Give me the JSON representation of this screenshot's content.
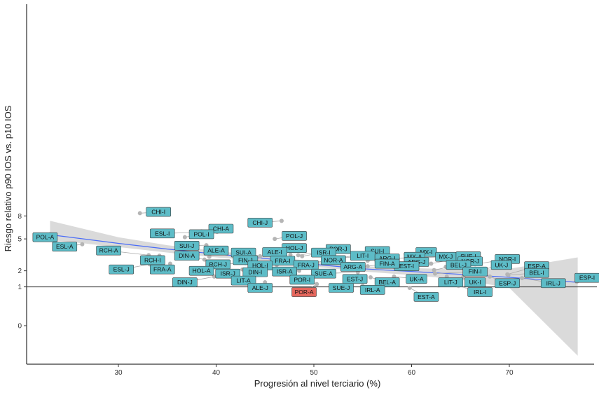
{
  "chart_data": {
    "type": "scatter",
    "xlabel": "Progresión al nivel terciario (%)",
    "ylabel": "Riesgo relativo p90 IOS vs. p10 IOS",
    "xlim": [
      21,
      79
    ],
    "ylim": [
      -1.0,
      9.0
    ],
    "x_ticks": [
      30,
      40,
      50,
      60,
      70
    ],
    "y_ticks": [
      0,
      1,
      2,
      5,
      8
    ],
    "reference_line_y": 1,
    "grid": false,
    "fit": {
      "method": "loess smooth with confidence band",
      "color": "#4a6cf7",
      "band_color": "#d3d3d3",
      "x": [
        23,
        30,
        35,
        40,
        45,
        50,
        55,
        60,
        65,
        70,
        77
      ],
      "y": [
        5.5,
        4.5,
        3.9,
        3.4,
        3.0,
        2.5,
        2.15,
        1.95,
        1.75,
        1.55,
        1.25
      ],
      "lower": [
        4.9,
        4.1,
        3.55,
        3.1,
        2.75,
        2.3,
        1.95,
        1.7,
        1.4,
        0.95,
        -0.6
      ],
      "upper": [
        7.3,
        5.2,
        4.3,
        3.7,
        3.2,
        2.75,
        2.35,
        2.2,
        2.1,
        2.15,
        3.1
      ]
    },
    "points": [
      {
        "label": "CHI-I",
        "x": 32.2,
        "y": 8.4,
        "lx": 34.1,
        "ly": 8.6
      },
      {
        "label": "CHI-J",
        "x": 46.7,
        "y": 7.3,
        "lx": 44.5,
        "ly": 7.05
      },
      {
        "label": "CHI-A",
        "x": 38.5,
        "y": 5.9,
        "lx": 40.5,
        "ly": 6.25
      },
      {
        "label": "ESL-I",
        "x": 40.1,
        "y": 5.85,
        "lx": 34.5,
        "ly": 5.65
      },
      {
        "label": "POL-I",
        "x": 36.8,
        "y": 5.2,
        "lx": 38.5,
        "ly": 5.55
      },
      {
        "label": "POL-J",
        "x": 46.0,
        "y": 5.0,
        "lx": 48.0,
        "ly": 5.35
      },
      {
        "label": "POL-A",
        "x": 23.0,
        "y": 5.55,
        "lx": 22.5,
        "ly": 5.2
      },
      {
        "label": "ESL-A",
        "x": 26.3,
        "y": 4.4,
        "lx": 24.5,
        "ly": 4.15
      },
      {
        "label": "SUI-J",
        "x": 39.0,
        "y": 4.3,
        "lx": 37.0,
        "ly": 4.25
      },
      {
        "label": "HOL-J",
        "x": 47.6,
        "y": 3.35,
        "lx": 48.0,
        "ly": 4.0
      },
      {
        "label": "POR-J",
        "x": 48.4,
        "y": 3.3,
        "lx": 52.5,
        "ly": 3.9
      },
      {
        "label": "RCH-A",
        "x": 33.1,
        "y": 3.3,
        "lx": 29.0,
        "ly": 3.75
      },
      {
        "label": "ALE-A",
        "x": 39.3,
        "y": 3.15,
        "lx": 40.0,
        "ly": 3.75
      },
      {
        "label": "SUI-A",
        "x": 44.5,
        "y": 3.2,
        "lx": 42.8,
        "ly": 3.55
      },
      {
        "label": "ALE-I",
        "x": 46.0,
        "y": 3.2,
        "lx": 46.0,
        "ly": 3.6
      },
      {
        "label": "ISR-I",
        "x": 48.8,
        "y": 3.2,
        "lx": 51.0,
        "ly": 3.55
      },
      {
        "label": "SUI-I",
        "x": 52.5,
        "y": 3.0,
        "lx": 56.5,
        "ly": 3.7
      },
      {
        "label": "MX-I",
        "x": 59.4,
        "y": 3.4,
        "lx": 61.5,
        "ly": 3.6
      },
      {
        "label": "LIT-I",
        "x": 51.5,
        "y": 2.9,
        "lx": 55.0,
        "ly": 3.25
      },
      {
        "label": "DIN-A",
        "x": 38.8,
        "y": 2.9,
        "lx": 37.0,
        "ly": 3.25
      },
      {
        "label": "MX-A",
        "x": 58.6,
        "y": 3.0,
        "lx": 60.3,
        "ly": 3.15
      },
      {
        "label": "MX-J",
        "x": 60.2,
        "y": 3.05,
        "lx": 63.5,
        "ly": 3.15
      },
      {
        "label": "SUE-I",
        "x": 62.0,
        "y": 2.55,
        "lx": 65.8,
        "ly": 3.2
      },
      {
        "label": "ARG-I",
        "x": 55.5,
        "y": 2.8,
        "lx": 57.5,
        "ly": 3.0
      },
      {
        "label": "NOR-I",
        "x": 66.5,
        "y": 2.5,
        "lx": 69.8,
        "ly": 2.95
      },
      {
        "label": "NOR-A",
        "x": 49.9,
        "y": 2.65,
        "lx": 52.0,
        "ly": 2.85
      },
      {
        "label": "RCH-I",
        "x": 34.2,
        "y": 3.25,
        "lx": 33.5,
        "ly": 2.85
      },
      {
        "label": "FIN-J",
        "x": 42.5,
        "y": 2.95,
        "lx": 43.0,
        "ly": 2.85
      },
      {
        "label": "FRA-I",
        "x": 46.5,
        "y": 2.9,
        "lx": 46.8,
        "ly": 2.8
      },
      {
        "label": "NOR-J",
        "x": 63.5,
        "y": 2.3,
        "lx": 66.0,
        "ly": 2.75
      },
      {
        "label": "ARG-J",
        "x": 57.5,
        "y": 2.55,
        "lx": 60.5,
        "ly": 2.7
      },
      {
        "label": "FRA-A",
        "x": 35.3,
        "y": 2.55,
        "lx": 34.5,
        "ly": 2.1
      },
      {
        "label": "RCH-J",
        "x": 43.0,
        "y": 2.6,
        "lx": 40.2,
        "ly": 2.5
      },
      {
        "label": "HOL-I",
        "x": 44.5,
        "y": 2.5,
        "lx": 44.5,
        "ly": 2.4
      },
      {
        "label": "FRA-J",
        "x": 46.2,
        "y": 2.45,
        "lx": 49.2,
        "ly": 2.45
      },
      {
        "label": "ARG-A",
        "x": 53.0,
        "y": 2.35,
        "lx": 54.0,
        "ly": 2.3
      },
      {
        "label": "EST-I",
        "x": 58.2,
        "y": 2.3,
        "lx": 59.5,
        "ly": 2.35
      },
      {
        "label": "FIN-A",
        "x": 55.5,
        "y": 2.35,
        "lx": 57.5,
        "ly": 2.55
      },
      {
        "label": "BEL-J",
        "x": 62.3,
        "y": 2.05,
        "lx": 64.8,
        "ly": 2.45
      },
      {
        "label": "UK-J",
        "x": 66.6,
        "y": 1.95,
        "lx": 69.2,
        "ly": 2.45
      },
      {
        "label": "ESP-A",
        "x": 69.8,
        "y": 1.75,
        "lx": 72.8,
        "ly": 2.35
      },
      {
        "label": "ESL-J",
        "x": 33.2,
        "y": 2.5,
        "lx": 30.3,
        "ly": 2.1
      },
      {
        "label": "HOL-A",
        "x": 40.1,
        "y": 2.3,
        "lx": 38.5,
        "ly": 2.0
      },
      {
        "label": "ISR-J",
        "x": 42.7,
        "y": 2.1,
        "lx": 41.2,
        "ly": 1.8
      },
      {
        "label": "DIN-I",
        "x": 44.0,
        "y": 2.05,
        "lx": 44.0,
        "ly": 1.9
      },
      {
        "label": "ISR-A",
        "x": 48.5,
        "y": 2.0,
        "lx": 47.0,
        "ly": 1.95
      },
      {
        "label": "SUE-A",
        "x": 54.5,
        "y": 1.9,
        "lx": 51.0,
        "ly": 1.8
      },
      {
        "label": "FIN-I",
        "x": 62.4,
        "y": 1.8,
        "lx": 66.5,
        "ly": 1.95
      },
      {
        "label": "BEL-I",
        "x": 69.9,
        "y": 1.7,
        "lx": 72.8,
        "ly": 1.85
      },
      {
        "label": "DIN-J",
        "x": 39.8,
        "y": 1.6,
        "lx": 36.8,
        "ly": 1.25
      },
      {
        "label": "LIT-A",
        "x": 43.3,
        "y": 1.6,
        "lx": 42.8,
        "ly": 1.35
      },
      {
        "label": "POR-I",
        "x": 48.3,
        "y": 1.55,
        "lx": 48.8,
        "ly": 1.4
      },
      {
        "label": "EST-J",
        "x": 54.5,
        "y": 1.65,
        "lx": 54.2,
        "ly": 1.45
      },
      {
        "label": "UK-A",
        "x": 58.2,
        "y": 1.6,
        "lx": 60.5,
        "ly": 1.45
      },
      {
        "label": "BEL-A",
        "x": 55.8,
        "y": 1.55,
        "lx": 57.5,
        "ly": 1.25
      },
      {
        "label": "LIT-J",
        "x": 63.6,
        "y": 1.6,
        "lx": 64.0,
        "ly": 1.25
      },
      {
        "label": "UK-I",
        "x": 65.3,
        "y": 1.6,
        "lx": 66.5,
        "ly": 1.25
      },
      {
        "label": "ESP-J",
        "x": 68.0,
        "y": 1.6,
        "lx": 69.8,
        "ly": 1.2
      },
      {
        "label": "IRL-J",
        "x": 71.3,
        "y": 1.5,
        "lx": 74.5,
        "ly": 1.2
      },
      {
        "label": "ESP-I",
        "x": 76.9,
        "y": 1.28,
        "lx": 79.0,
        "ly": 1.52
      },
      {
        "label": "ALE-J",
        "x": 45.0,
        "y": 1.25,
        "lx": 44.5,
        "ly": 0.95
      },
      {
        "label": "POR-A",
        "x": 50.3,
        "y": 1.15,
        "lx": 49.0,
        "ly": 0.75,
        "highlight": true
      },
      {
        "label": "SUE-J",
        "x": 53.4,
        "y": 1.25,
        "lx": 52.8,
        "ly": 0.95
      },
      {
        "label": "IRL-A",
        "x": 55.0,
        "y": 1.05,
        "lx": 56.0,
        "ly": 0.85
      },
      {
        "label": "EST-A",
        "x": 59.8,
        "y": 0.95,
        "lx": 61.5,
        "ly": 0.55
      },
      {
        "label": "IRL-I",
        "x": 64.8,
        "y": 1.05,
        "lx": 67.0,
        "ly": 0.75
      }
    ],
    "colors": {
      "label_fill": "#5dbcc7",
      "highlight_fill": "#e5675d",
      "point": "#b5b5b5",
      "axis": "#000000"
    }
  }
}
